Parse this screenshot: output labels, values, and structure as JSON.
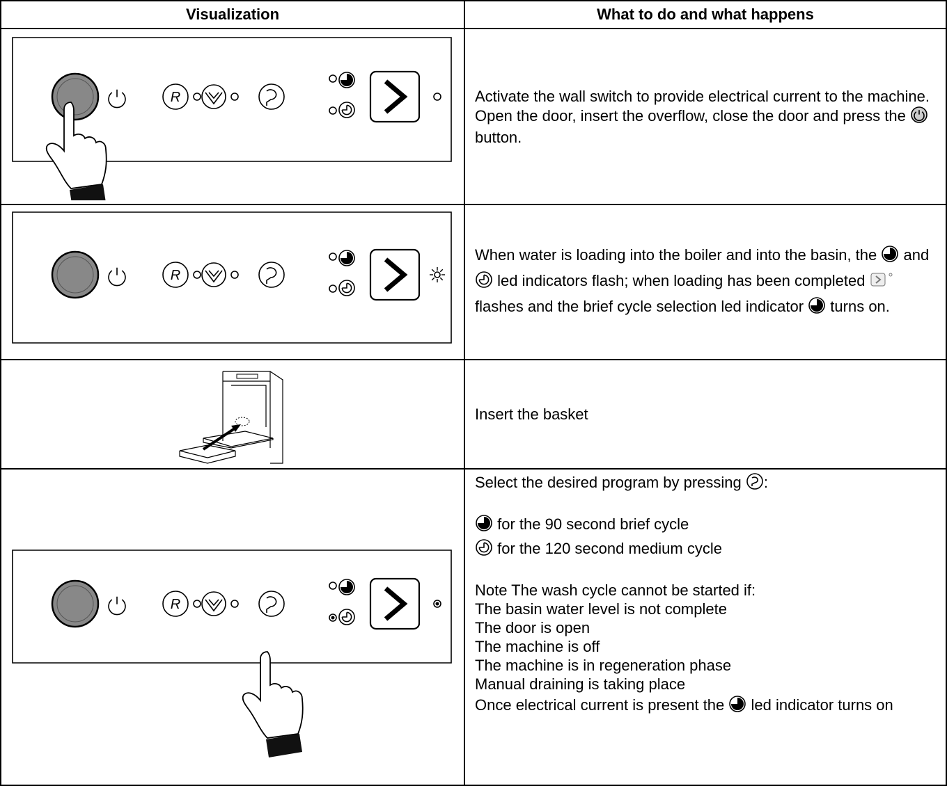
{
  "header": {
    "col1": "Visualization",
    "col2": "What to do and what happens"
  },
  "rows": [
    {
      "text": [
        "Activate the wall switch to provide electrical current to the machine.",
        "Open the door, insert the overflow, close the door and press the",
        "button."
      ]
    },
    {
      "text": [
        "When water is loading into the boiler and into the basin, the",
        "and",
        "led indicators flash; when loading has been completed",
        "flashes and the brief cycle selection led indicator",
        "turns on."
      ]
    },
    {
      "text": [
        "Insert the basket"
      ]
    },
    {
      "text": [
        "Select the desired program by pressing",
        ":",
        "for the 90 second brief cycle",
        "for the 120 second medium cycle",
        "Note The wash cycle cannot be started if:",
        "The basin water level is not complete",
        "The door is open",
        "The machine is off",
        "The machine is in regeneration phase",
        "Manual draining is taking place",
        "Once electrical current is present the",
        "led indicator turns on"
      ]
    }
  ]
}
